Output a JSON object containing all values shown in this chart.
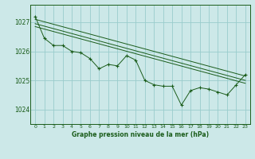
{
  "title": "Graphe pression niveau de la mer (hPa)",
  "background_color": "#cce8e8",
  "grid_color": "#99cccc",
  "line_color": "#1a5c1a",
  "marker_color": "#1a5c1a",
  "xlim": [
    -0.5,
    23.5
  ],
  "ylim": [
    1023.5,
    1027.6
  ],
  "yticks": [
    1024,
    1025,
    1026,
    1027
  ],
  "xticks": [
    0,
    1,
    2,
    3,
    4,
    5,
    6,
    7,
    8,
    9,
    10,
    11,
    12,
    13,
    14,
    15,
    16,
    17,
    18,
    19,
    20,
    21,
    22,
    23
  ],
  "trend1_x": [
    0,
    23
  ],
  "trend1_y": [
    1027.1,
    1025.15
  ],
  "trend2_x": [
    0,
    23
  ],
  "trend2_y": [
    1026.95,
    1025.0
  ],
  "trend3_x": [
    0,
    23
  ],
  "trend3_y": [
    1026.85,
    1024.9
  ],
  "main_x": [
    0,
    1,
    2,
    3,
    4,
    5,
    6,
    7,
    8,
    9,
    10,
    11,
    12,
    13,
    14,
    15,
    16,
    17,
    18,
    19,
    20,
    21,
    22,
    23
  ],
  "main_y": [
    1027.2,
    1026.45,
    1026.2,
    1026.2,
    1026.0,
    1025.95,
    1025.75,
    1025.4,
    1025.55,
    1025.5,
    1025.85,
    1025.7,
    1025.0,
    1024.85,
    1024.8,
    1024.8,
    1024.15,
    1024.65,
    1024.75,
    1024.7,
    1024.6,
    1024.5,
    1024.85,
    1025.2
  ]
}
